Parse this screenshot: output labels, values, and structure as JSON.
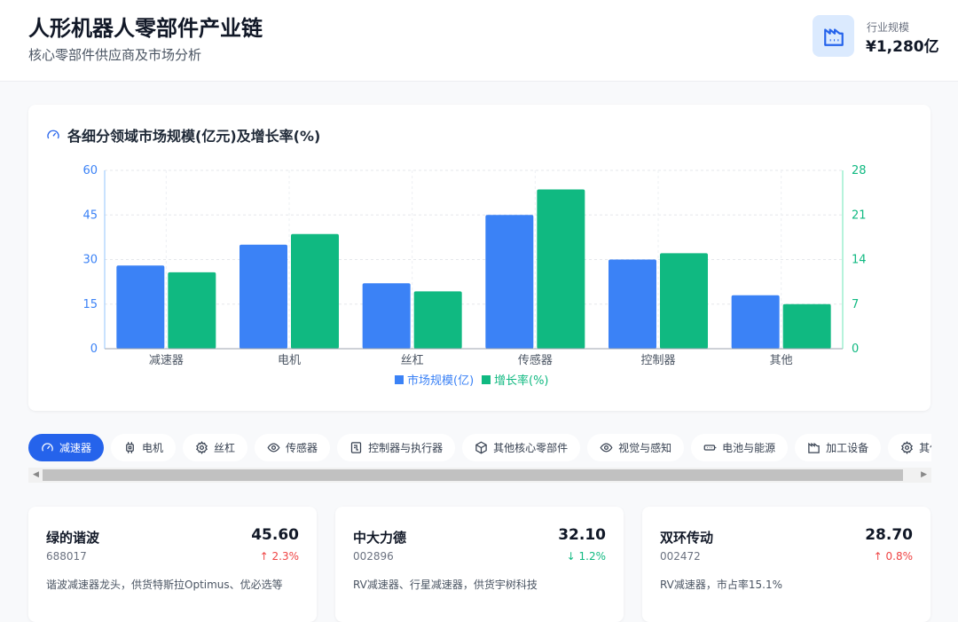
{
  "header": {
    "title": "人形机器人零部件产业链",
    "subtitle": "核心零部件供应商及市场分析",
    "stat_label": "行业规模",
    "stat_value": "¥1,280亿"
  },
  "chart_data": {
    "type": "bar",
    "title": "各细分领域市场规模(亿元)及增长率(%)",
    "categories": [
      "减速器",
      "电机",
      "丝杠",
      "传感器",
      "控制器",
      "其他"
    ],
    "series": [
      {
        "name": "市场规模(亿)",
        "axis": "left",
        "color": "#3b82f6",
        "values": [
          28,
          35,
          22,
          45,
          30,
          18
        ]
      },
      {
        "name": "增长率(%)",
        "axis": "right",
        "color": "#10b981",
        "values": [
          12,
          18,
          9,
          25,
          15,
          7
        ]
      }
    ],
    "y_left": {
      "ylim": [
        0,
        60
      ],
      "ticks": [
        "0",
        "15",
        "30",
        "45",
        "60"
      ]
    },
    "y_right": {
      "ylim": [
        0,
        28
      ],
      "ticks": [
        "0",
        "7",
        "14",
        "21",
        "28"
      ]
    },
    "grid": true,
    "legend": "bottom"
  },
  "tabs": [
    {
      "label": "减速器",
      "icon": "gauge-icon",
      "active": true
    },
    {
      "label": "电机",
      "icon": "chip-icon"
    },
    {
      "label": "丝杠",
      "icon": "gear-icon"
    },
    {
      "label": "传感器",
      "icon": "eye-icon"
    },
    {
      "label": "控制器与执行器",
      "icon": "circuit-icon"
    },
    {
      "label": "其他核心零部件",
      "icon": "box-icon"
    },
    {
      "label": "视觉与感知",
      "icon": "eye-icon"
    },
    {
      "label": "电池与能源",
      "icon": "battery-icon"
    },
    {
      "label": "加工设备",
      "icon": "factory-icon"
    },
    {
      "label": "其他",
      "icon": "gear-icon"
    }
  ],
  "cards": [
    {
      "name": "绿的谐波",
      "code": "688017",
      "price": "45.60",
      "change": "2.3%",
      "direction": "up",
      "desc": "谐波减速器龙头，供货特斯拉Optimus、优必选等"
    },
    {
      "name": "中大力德",
      "code": "002896",
      "price": "32.10",
      "change": "1.2%",
      "direction": "down",
      "desc": "RV减速器、行星减速器，供货宇树科技"
    },
    {
      "name": "双环传动",
      "code": "002472",
      "price": "28.70",
      "change": "0.8%",
      "direction": "up",
      "desc": "RV减速器，市占率15.1%"
    }
  ]
}
